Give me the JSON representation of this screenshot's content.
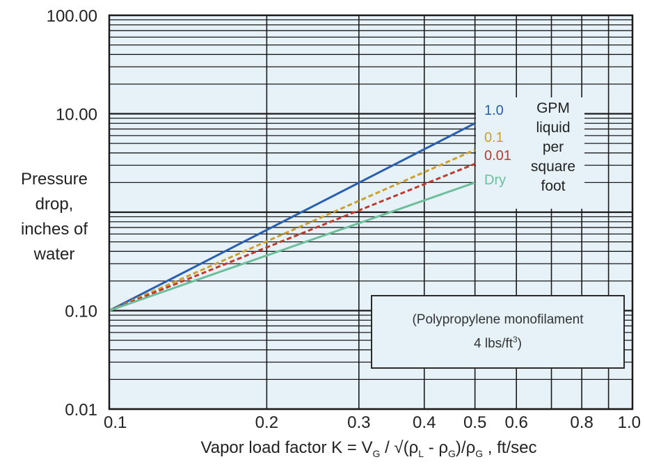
{
  "chart_data": {
    "type": "line",
    "xscale": "log",
    "yscale": "log",
    "xlim": [
      0.1,
      1.0
    ],
    "ylim": [
      0.01,
      100
    ],
    "xticks": [
      "0.1",
      "0.2",
      "0.3",
      "0.4",
      "0.5",
      "0.6",
      "0.8",
      "1.0"
    ],
    "yticks": [
      "0.01",
      "0.10",
      "10.00",
      "100.00"
    ],
    "ylabel_lines": [
      "Pressure",
      "drop,",
      "inches of",
      "water"
    ],
    "xlabel": {
      "prefix": "Vapor load factor K = V",
      "sub_g1": "G",
      "sep": " / √(ρ",
      "sub_l": "L",
      "mid": " - ρ",
      "sub_g2": "G",
      "mid2": ")/ρ",
      "sub_g3": "G",
      "suffix": " , ft/sec"
    },
    "legend_title_lines": [
      "GPM",
      "liquid",
      "per",
      "square",
      "foot"
    ],
    "note_lines": [
      "(Polypropylene monofilament",
      "4 lbs/ft",
      "3",
      ")"
    ],
    "grid": true,
    "series": [
      {
        "name": "1.0",
        "color": "#2a5fb0",
        "style": "solid",
        "x": [
          0.1,
          0.5
        ],
        "y": [
          0.1,
          8.0
        ]
      },
      {
        "name": "0.1",
        "color": "#c9a030",
        "style": "dashed",
        "x": [
          0.1,
          0.5
        ],
        "y": [
          0.1,
          4.3
        ]
      },
      {
        "name": "0.01",
        "color": "#c0392b",
        "style": "dashed",
        "x": [
          0.1,
          0.5
        ],
        "y": [
          0.1,
          3.1
        ]
      },
      {
        "name": "Dry",
        "color": "#6cbf9a",
        "style": "solid",
        "x": [
          0.1,
          0.5
        ],
        "y": [
          0.1,
          2.0
        ]
      }
    ]
  }
}
